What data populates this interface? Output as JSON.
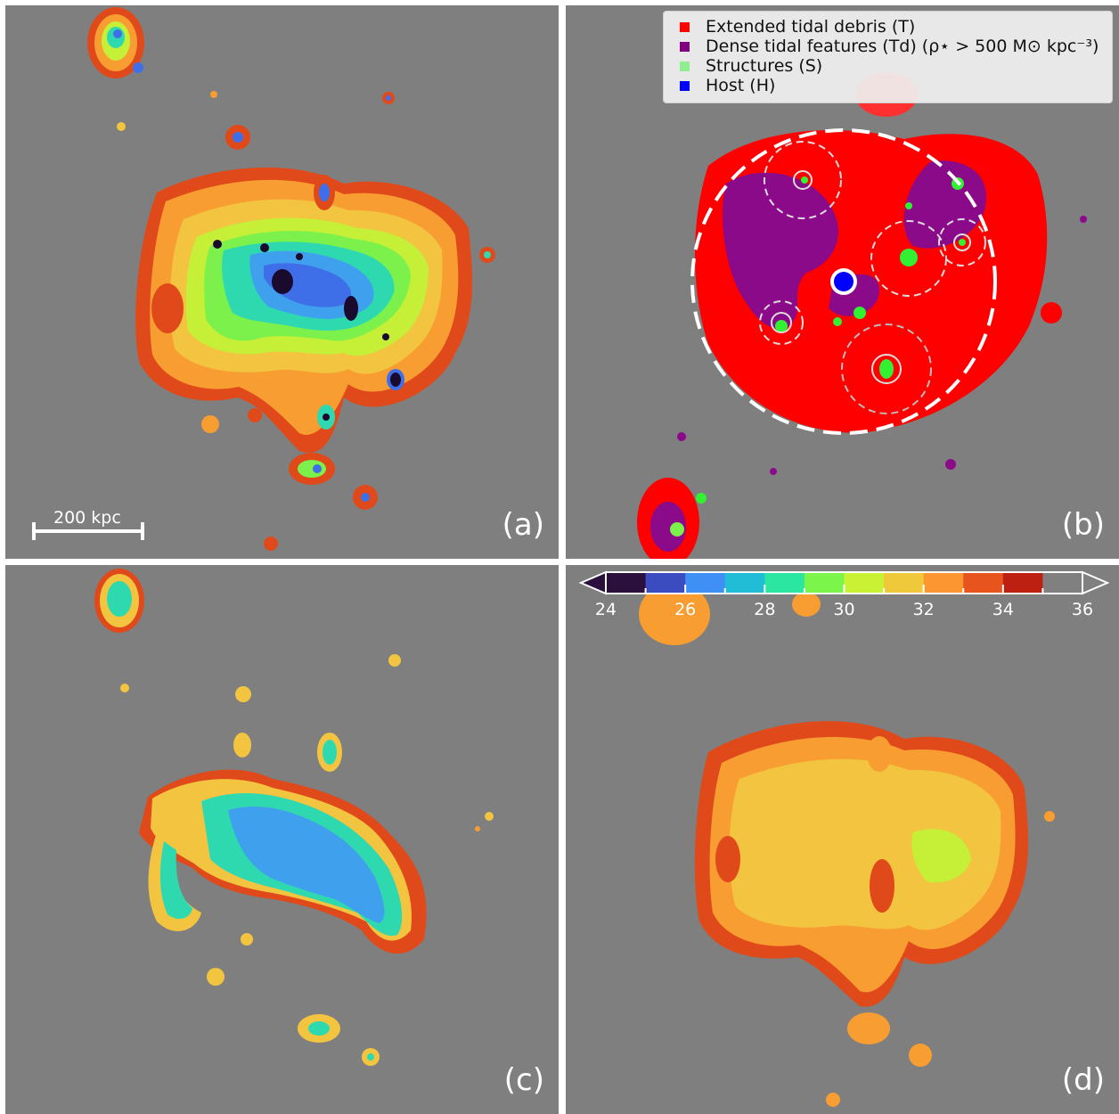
{
  "panels": [
    {
      "label": "(a)"
    },
    {
      "label": "(b)"
    },
    {
      "label": "(c)"
    },
    {
      "label": "(d)"
    }
  ],
  "scale_bar": {
    "text": "200 kpc",
    "length_kpc": 200
  },
  "legend": {
    "items": [
      {
        "label": "Extended tidal debris (T)",
        "color": "#ff0000"
      },
      {
        "label": "Dense tidal features (Td) (ρ⋆ > 500 M⊙ kpc⁻³)",
        "color": "#800080"
      },
      {
        "label": "Structures (S)",
        "color": "#90ee90"
      },
      {
        "label": "Host (H)",
        "color": "#0000ff"
      }
    ]
  },
  "colorbar": {
    "tick_labels": [
      "24",
      "26",
      "28",
      "30",
      "32",
      "34",
      "36"
    ],
    "colors": [
      "#2b0f3d",
      "#3b4cc0",
      "#3f8ff5",
      "#21bcd5",
      "#2be6a0",
      "#7cf54a",
      "#c8f233",
      "#f0c93a",
      "#fb9630",
      "#e8541e",
      "#bd2010",
      "#808080"
    ]
  },
  "colors": {
    "background": "#7f7f7f",
    "debris_outer": "#e04a1a",
    "debris_mid": "#f79d32",
    "debris_inner": "#f2c440",
    "green_yellow": "#c6ef38",
    "green": "#7df14b",
    "cyan": "#2fd9b0",
    "blue": "#3f6fe8",
    "dark": "#1a0a2e"
  }
}
